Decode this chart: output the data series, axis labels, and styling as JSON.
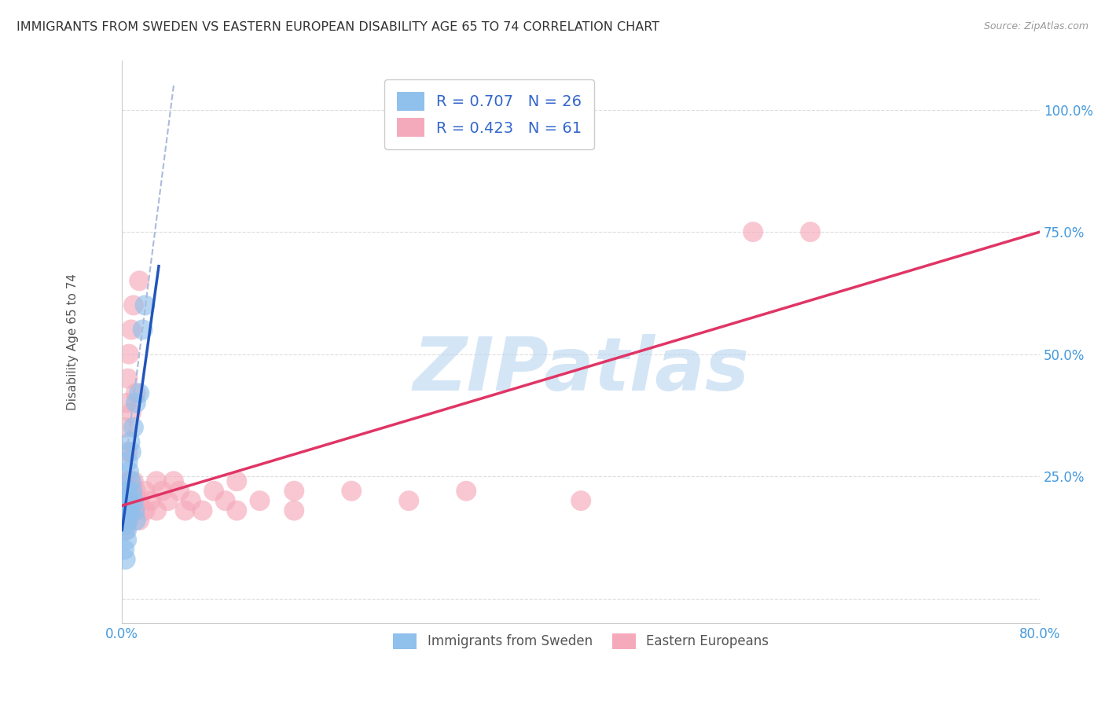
{
  "title": "IMMIGRANTS FROM SWEDEN VS EASTERN EUROPEAN DISABILITY AGE 65 TO 74 CORRELATION CHART",
  "source": "Source: ZipAtlas.com",
  "ylabel": "Disability Age 65 to 74",
  "xmin": 0.0,
  "xmax": 80.0,
  "ymin": -5.0,
  "ymax": 110.0,
  "ytick_positions": [
    0,
    25,
    50,
    75,
    100
  ],
  "ytick_labels": [
    "",
    "25.0%",
    "50.0%",
    "75.0%",
    "100.0%"
  ],
  "xtick_positions": [
    0,
    20,
    40,
    60,
    80
  ],
  "xtick_labels": [
    "0.0%",
    "",
    "",
    "",
    "80.0%"
  ],
  "sweden_R": 0.707,
  "sweden_N": 26,
  "eastern_R": 0.423,
  "eastern_N": 61,
  "sweden_color": "#90C0EC",
  "eastern_color": "#F5AABB",
  "sweden_line_color": "#2255BB",
  "eastern_line_color": "#E03565",
  "dash_line_color": "#AABBDD",
  "sweden_line_x": [
    0.0,
    3.2
  ],
  "sweden_line_y": [
    14.0,
    68.0
  ],
  "eastern_line_x": [
    0.0,
    80.0
  ],
  "eastern_line_y": [
    19.0,
    75.0
  ],
  "dash_line_x": [
    0.3,
    4.5
  ],
  "dash_line_y": [
    28.0,
    105.0
  ],
  "sweden_scatter": [
    [
      0.15,
      22.0
    ],
    [
      0.25,
      20.0
    ],
    [
      0.35,
      18.0
    ],
    [
      0.3,
      15.0
    ],
    [
      0.4,
      12.0
    ],
    [
      0.5,
      16.0
    ],
    [
      0.5,
      22.0
    ],
    [
      0.6,
      20.0
    ],
    [
      0.7,
      18.0
    ],
    [
      0.8,
      24.0
    ],
    [
      0.9,
      22.0
    ],
    [
      1.0,
      20.0
    ],
    [
      1.1,
      18.0
    ],
    [
      1.2,
      16.0
    ],
    [
      0.2,
      10.0
    ],
    [
      0.3,
      8.0
    ],
    [
      0.4,
      14.0
    ],
    [
      0.6,
      26.0
    ],
    [
      0.8,
      30.0
    ],
    [
      1.0,
      35.0
    ],
    [
      1.5,
      42.0
    ],
    [
      1.8,
      55.0
    ],
    [
      2.0,
      60.0
    ],
    [
      0.5,
      28.0
    ],
    [
      0.7,
      32.0
    ],
    [
      1.2,
      40.0
    ]
  ],
  "eastern_scatter": [
    [
      0.1,
      20.0
    ],
    [
      0.15,
      18.0
    ],
    [
      0.2,
      22.0
    ],
    [
      0.2,
      16.0
    ],
    [
      0.25,
      24.0
    ],
    [
      0.3,
      20.0
    ],
    [
      0.3,
      14.0
    ],
    [
      0.35,
      18.0
    ],
    [
      0.4,
      22.0
    ],
    [
      0.4,
      16.0
    ],
    [
      0.5,
      20.0
    ],
    [
      0.5,
      24.0
    ],
    [
      0.5,
      18.0
    ],
    [
      0.6,
      22.0
    ],
    [
      0.6,
      16.0
    ],
    [
      0.7,
      20.0
    ],
    [
      0.7,
      24.0
    ],
    [
      0.8,
      18.0
    ],
    [
      0.8,
      22.0
    ],
    [
      0.9,
      20.0
    ],
    [
      1.0,
      18.0
    ],
    [
      1.0,
      24.0
    ],
    [
      1.2,
      22.0
    ],
    [
      1.2,
      18.0
    ],
    [
      1.5,
      20.0
    ],
    [
      1.5,
      16.0
    ],
    [
      2.0,
      22.0
    ],
    [
      2.0,
      18.0
    ],
    [
      2.5,
      20.0
    ],
    [
      3.0,
      24.0
    ],
    [
      3.0,
      18.0
    ],
    [
      3.5,
      22.0
    ],
    [
      4.0,
      20.0
    ],
    [
      4.5,
      24.0
    ],
    [
      5.0,
      22.0
    ],
    [
      5.5,
      18.0
    ],
    [
      6.0,
      20.0
    ],
    [
      7.0,
      18.0
    ],
    [
      8.0,
      22.0
    ],
    [
      9.0,
      20.0
    ],
    [
      10.0,
      24.0
    ],
    [
      10.0,
      18.0
    ],
    [
      12.0,
      20.0
    ],
    [
      15.0,
      22.0
    ],
    [
      15.0,
      18.0
    ],
    [
      0.3,
      35.0
    ],
    [
      0.4,
      40.0
    ],
    [
      0.5,
      45.0
    ],
    [
      0.6,
      50.0
    ],
    [
      0.8,
      55.0
    ],
    [
      1.0,
      60.0
    ],
    [
      1.5,
      65.0
    ],
    [
      0.5,
      30.0
    ],
    [
      0.8,
      38.0
    ],
    [
      1.2,
      42.0
    ],
    [
      20.0,
      22.0
    ],
    [
      25.0,
      20.0
    ],
    [
      30.0,
      22.0
    ],
    [
      40.0,
      20.0
    ],
    [
      60.0,
      75.0
    ],
    [
      55.0,
      75.0
    ]
  ],
  "watermark_text": "ZIPatlas",
  "watermark_color": "#B8D4F0",
  "legend_sweden_label": "R = 0.707   N = 26",
  "legend_eastern_label": "R = 0.423   N = 61",
  "legend_bottom_sweden": "Immigrants from Sweden",
  "legend_bottom_eastern": "Eastern Europeans",
  "background_color": "#FFFFFF",
  "grid_color": "#DDDDDD"
}
